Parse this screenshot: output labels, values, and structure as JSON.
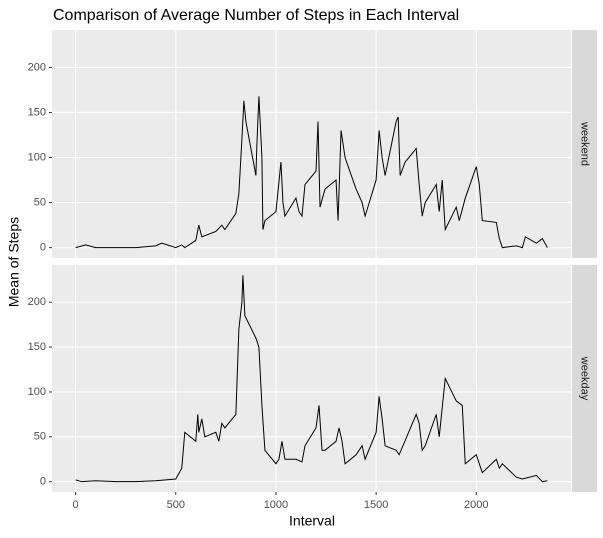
{
  "chart_data": {
    "type": "line",
    "title": "Comparison of Average Number of Steps in Each Interval",
    "x_label": "Interval",
    "y_label": "Mean of Steps",
    "color": "#000000",
    "xlim": [
      -117.75,
      2472.75
    ],
    "ylim": [
      -11.5,
      241.5
    ],
    "xticks": [
      0,
      500,
      1000,
      1500,
      2000
    ],
    "yticks": [
      0,
      50,
      100,
      150,
      200
    ],
    "grid": true,
    "panels": [
      {
        "label": "weekend",
        "x": [
          0,
          50,
          100,
          200,
          300,
          400,
          430,
          500,
          530,
          545,
          600,
          615,
          630,
          700,
          730,
          745,
          800,
          815,
          830,
          840,
          850,
          900,
          905,
          915,
          930,
          935,
          945,
          1000,
          1025,
          1035,
          1045,
          1100,
          1115,
          1130,
          1145,
          1200,
          1210,
          1220,
          1245,
          1300,
          1310,
          1325,
          1345,
          1400,
          1430,
          1445,
          1500,
          1515,
          1530,
          1545,
          1600,
          1610,
          1620,
          1645,
          1700,
          1715,
          1730,
          1745,
          1800,
          1815,
          1830,
          1845,
          1900,
          1915,
          1945,
          2000,
          2015,
          2030,
          2100,
          2115,
          2130,
          2200,
          2230,
          2245,
          2300,
          2330,
          2355
        ],
        "values": [
          0,
          3,
          0,
          0,
          0,
          2,
          5,
          0,
          3,
          0,
          8,
          25,
          12,
          18,
          25,
          20,
          38,
          60,
          120,
          163,
          140,
          80,
          115,
          168,
          100,
          20,
          30,
          40,
          95,
          50,
          35,
          55,
          40,
          35,
          70,
          85,
          140,
          45,
          65,
          75,
          30,
          130,
          100,
          65,
          50,
          35,
          75,
          130,
          100,
          80,
          140,
          145,
          80,
          95,
          110,
          70,
          35,
          50,
          70,
          40,
          75,
          20,
          45,
          30,
          55,
          90,
          70,
          30,
          28,
          10,
          0,
          2,
          0,
          12,
          5,
          10,
          0
        ]
      },
      {
        "label": "weekday",
        "x": [
          0,
          30,
          100,
          200,
          300,
          400,
          500,
          530,
          545,
          600,
          610,
          615,
          630,
          645,
          700,
          715,
          730,
          745,
          800,
          815,
          830,
          835,
          845,
          900,
          915,
          930,
          945,
          1000,
          1015,
          1030,
          1045,
          1100,
          1130,
          1145,
          1200,
          1215,
          1230,
          1245,
          1300,
          1315,
          1330,
          1345,
          1400,
          1430,
          1445,
          1500,
          1515,
          1530,
          1545,
          1600,
          1615,
          1700,
          1715,
          1730,
          1745,
          1800,
          1815,
          1845,
          1900,
          1930,
          1945,
          2000,
          2030,
          2100,
          2115,
          2130,
          2200,
          2230,
          2300,
          2330,
          2355
        ],
        "values": [
          2,
          0,
          1,
          0,
          0,
          1,
          3,
          15,
          55,
          45,
          75,
          55,
          70,
          50,
          55,
          45,
          65,
          60,
          75,
          170,
          200,
          230,
          185,
          160,
          150,
          85,
          35,
          20,
          25,
          45,
          25,
          25,
          22,
          40,
          60,
          85,
          35,
          35,
          45,
          60,
          45,
          20,
          30,
          40,
          25,
          55,
          95,
          70,
          40,
          35,
          30,
          75,
          65,
          35,
          40,
          75,
          50,
          115,
          90,
          85,
          20,
          30,
          10,
          25,
          15,
          20,
          5,
          3,
          7,
          0,
          1
        ]
      }
    ]
  }
}
